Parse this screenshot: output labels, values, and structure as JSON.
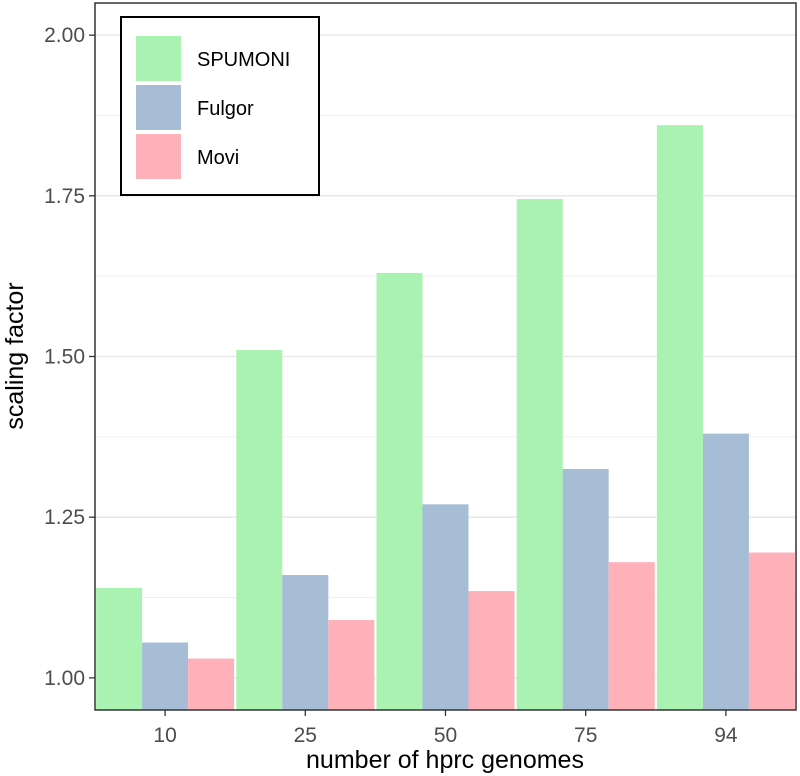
{
  "chart_data": {
    "type": "bar",
    "title": "",
    "xlabel": "number of hprc genomes",
    "ylabel": "scaling factor",
    "categories": [
      "10",
      "25",
      "50",
      "75",
      "94"
    ],
    "series": [
      {
        "name": "SPUMONI",
        "color": "#aaf2b1",
        "values": [
          1.14,
          1.51,
          1.63,
          1.745,
          1.86
        ]
      },
      {
        "name": "Fulgor",
        "color": "#a7bcd5",
        "values": [
          1.055,
          1.16,
          1.27,
          1.325,
          1.38
        ]
      },
      {
        "name": "Movi",
        "color": "#ffb1b9",
        "values": [
          1.03,
          1.09,
          1.135,
          1.18,
          1.195
        ]
      }
    ],
    "ylim": [
      0.95,
      2.05
    ],
    "yticks": [
      1.0,
      1.25,
      1.5,
      1.75,
      2.0
    ],
    "ytick_labels": [
      "1.00",
      "1.25",
      "1.50",
      "1.75",
      "2.00"
    ],
    "grid": true,
    "legend_position": "top-left"
  }
}
